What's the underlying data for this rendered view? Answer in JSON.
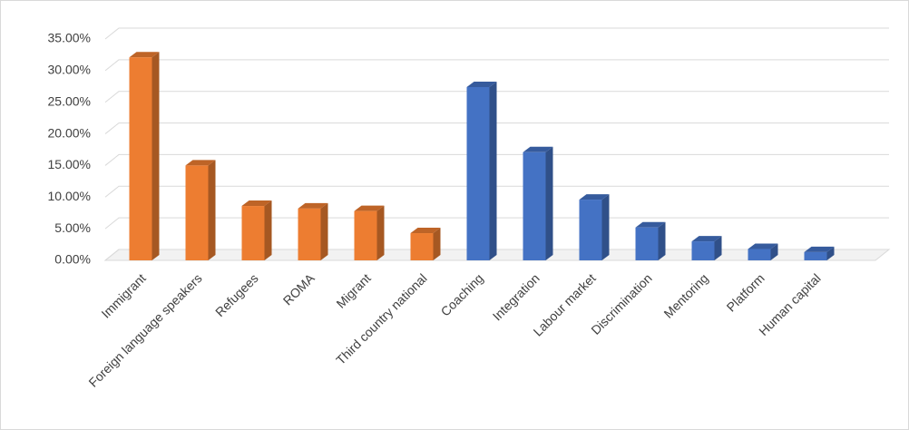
{
  "chart_data": {
    "type": "bar3d",
    "categories": [
      "Immigrant",
      "Foreign language speakers",
      "Refugees",
      "ROMA",
      "Migrant",
      "Third country national",
      "Coaching",
      "Integration",
      "Labour market",
      "Discrimination",
      "Mentoring",
      "Platform",
      "Human capital"
    ],
    "values": [
      32.1,
      15.0,
      8.6,
      8.2,
      7.8,
      4.3,
      27.4,
      17.1,
      9.6,
      5.2,
      3.0,
      1.8,
      1.3
    ],
    "colors": [
      "#ed7d31",
      "#ed7d31",
      "#ed7d31",
      "#ed7d31",
      "#ed7d31",
      "#ed7d31",
      "#4472c4",
      "#4472c4",
      "#4472c4",
      "#4472c4",
      "#4472c4",
      "#4472c4",
      "#4472c4"
    ],
    "ylim": [
      0,
      35
    ],
    "yticks": [
      {
        "value": 0,
        "label": "0.00%"
      },
      {
        "value": 5,
        "label": "5.00%"
      },
      {
        "value": 10,
        "label": "10.00%"
      },
      {
        "value": 15,
        "label": "15.00%"
      },
      {
        "value": 20,
        "label": "20.00%"
      },
      {
        "value": 25,
        "label": "25.00%"
      },
      {
        "value": 30,
        "label": "30.00%"
      },
      {
        "value": 35,
        "label": "35.00%"
      }
    ],
    "grid": true
  }
}
